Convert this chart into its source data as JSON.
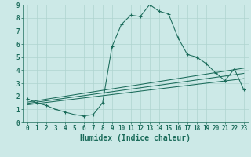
{
  "xlabel": "Humidex (Indice chaleur)",
  "background_color": "#cce9e7",
  "grid_color": "#afd4d0",
  "line_color": "#1a6b5a",
  "xlim": [
    -0.5,
    23.5
  ],
  "ylim": [
    0,
    9
  ],
  "xticks": [
    0,
    1,
    2,
    3,
    4,
    5,
    6,
    7,
    8,
    9,
    10,
    11,
    12,
    13,
    14,
    15,
    16,
    17,
    18,
    19,
    20,
    21,
    22,
    23
  ],
  "yticks": [
    0,
    1,
    2,
    3,
    4,
    5,
    6,
    7,
    8,
    9
  ],
  "main_line_x": [
    0,
    1,
    2,
    3,
    4,
    5,
    6,
    7,
    8,
    9,
    10,
    11,
    12,
    13,
    14,
    15,
    16,
    17,
    18,
    19,
    20,
    21,
    22,
    23
  ],
  "main_line_y": [
    1.8,
    1.5,
    1.3,
    1.0,
    0.8,
    0.6,
    0.5,
    0.6,
    1.5,
    5.8,
    7.5,
    8.2,
    8.1,
    9.0,
    8.5,
    8.3,
    6.5,
    5.2,
    5.0,
    4.5,
    3.8,
    3.2,
    4.1,
    2.5
  ],
  "diag_line1_x": [
    0,
    23
  ],
  "diag_line1_y": [
    1.55,
    4.15
  ],
  "diag_line2_x": [
    0,
    23
  ],
  "diag_line2_y": [
    1.45,
    3.75
  ],
  "diag_line3_x": [
    0,
    23
  ],
  "diag_line3_y": [
    1.35,
    3.35
  ],
  "font_size_label": 6,
  "font_size_tick": 5.5,
  "font_size_xlabel": 7
}
